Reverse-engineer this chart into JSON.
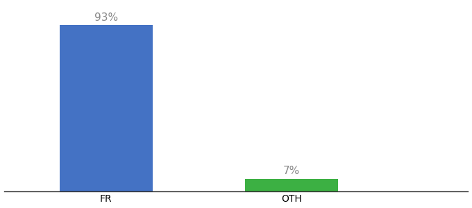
{
  "categories": [
    "FR",
    "OTH"
  ],
  "values": [
    93,
    7
  ],
  "bar_colors": [
    "#4472c4",
    "#3cb043"
  ],
  "value_labels": [
    "93%",
    "7%"
  ],
  "background_color": "#ffffff",
  "bar_width": 0.5,
  "ylim": [
    0,
    105
  ],
  "label_fontsize": 11,
  "tick_fontsize": 10,
  "label_color": "#888888",
  "x_positions": [
    0,
    1
  ],
  "xlim": [
    -0.55,
    1.95
  ]
}
